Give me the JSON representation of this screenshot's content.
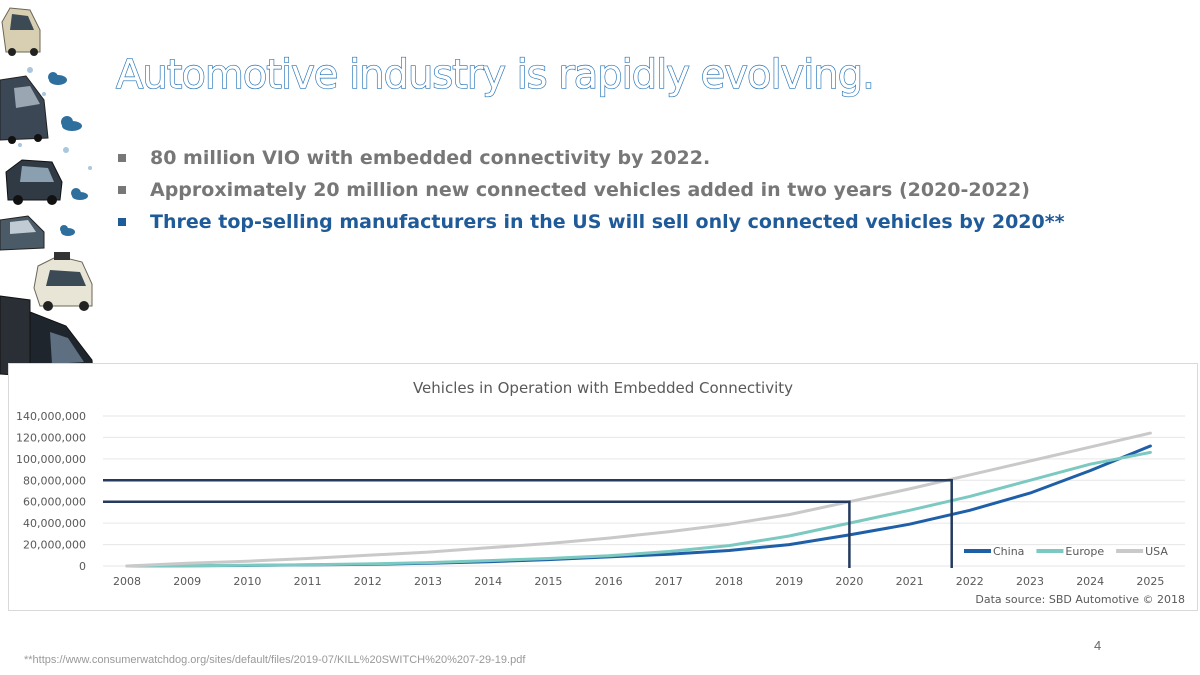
{
  "slide": {
    "title": "Automotive industry is rapidly evolving.",
    "bullets": [
      {
        "text": "80 million VIO with embedded connectivity by 2022.",
        "highlight": false
      },
      {
        "text": "Approximately 20 million new connected vehicles added in two years (2020-2022)",
        "highlight": false
      },
      {
        "text": "Three top-selling manufacturers in the US will sell only connected vehicles by 2020**",
        "highlight": true
      }
    ],
    "page_number": "4",
    "footnote": "**https://www.consumerwatchdog.org/sites/default/files/2019-07/KILL%20SWITCH%20%207-29-19.pdf",
    "decoration_icons": [
      "car-icon",
      "truck-icon",
      "suv-icon",
      "van-icon",
      "autonomous-car-icon",
      "semi-truck-icon",
      "cloud-icon"
    ]
  },
  "chart_data": {
    "type": "line",
    "title": "Vehicles in Operation with Embedded Connectivity",
    "x": [
      "2008",
      "2009",
      "2010",
      "2011",
      "2012",
      "2013",
      "2014",
      "2015",
      "2016",
      "2017",
      "2018",
      "2019",
      "2020",
      "2021",
      "2022",
      "2023",
      "2024",
      "2025"
    ],
    "ylim": [
      0,
      140000000
    ],
    "yticks": [
      0,
      20000000,
      40000000,
      60000000,
      80000000,
      100000000,
      120000000,
      140000000
    ],
    "ytick_labels": [
      "0",
      "20,000,000",
      "40,000,000",
      "60,000,000",
      "80,000,000",
      "100,000,000",
      "120,000,000",
      "140,000,000"
    ],
    "grid": true,
    "legend_position": "bottom-right",
    "series": [
      {
        "name": "China",
        "color": "#1f5fa8",
        "values": [
          0,
          200000,
          500000,
          1000000,
          1500000,
          2500000,
          4000000,
          6000000,
          8500000,
          11000000,
          14500000,
          20000000,
          29000000,
          39000000,
          52000000,
          68000000,
          89000000,
          112000000
        ]
      },
      {
        "name": "Europe",
        "color": "#7cc9c2",
        "values": [
          0,
          300000,
          700000,
          1200000,
          2000000,
          3200000,
          5000000,
          7000000,
          9500000,
          13500000,
          19000000,
          28000000,
          40000000,
          52000000,
          65000000,
          80000000,
          95000000,
          106000000
        ]
      },
      {
        "name": "USA",
        "color": "#c9c9c9",
        "values": [
          0,
          2500000,
          4500000,
          7000000,
          10000000,
          13000000,
          17000000,
          21000000,
          26000000,
          32000000,
          39000000,
          48000000,
          60000000,
          72000000,
          85000000,
          98000000,
          111000000,
          124000000
        ]
      }
    ],
    "annotations": [
      {
        "type": "guide",
        "y": 60000000,
        "x": 2020.0,
        "color": "#243a5e"
      },
      {
        "type": "guide",
        "y": 80000000,
        "x": 2021.7,
        "color": "#243a5e"
      }
    ],
    "source": "Data source: SBD Automotive © 2018"
  }
}
